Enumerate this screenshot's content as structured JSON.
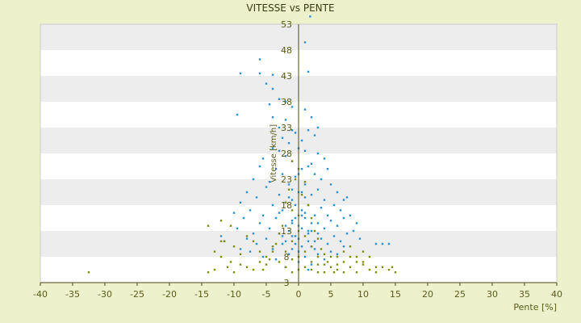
{
  "chart_data": {
    "type": "scatter",
    "title": "VITESSE vs PENTE",
    "xlabel": "Pente [%]",
    "ylabel": "Vitesse [km/h]",
    "xlim": [
      -40,
      40
    ],
    "ylim": [
      3,
      53
    ],
    "x_ticks": [
      "-40",
      "-35",
      "-30",
      "-25",
      "-20",
      "-15",
      "-10",
      "-5",
      "0",
      "5",
      "10",
      "15",
      "20",
      "25",
      "30",
      "35",
      "40"
    ],
    "y_ticks": [
      "3",
      "8",
      "13",
      "18",
      "23",
      "28",
      "33",
      "38",
      "43",
      "48",
      "53"
    ],
    "grid": "horizontal alternating bands",
    "legend": "none",
    "colors": {
      "background": "#eef2cc",
      "band_light": "#ffffff",
      "band_dark": "#ededed",
      "series_blue": "#2b8fd6",
      "series_olive": "#7f8b10",
      "axis": "#4a4a10"
    },
    "series": [
      {
        "color": "#2b8fd6",
        "points": [
          [
            1.8,
            54.5
          ],
          [
            1,
            49.5
          ],
          [
            -6,
            46.2
          ],
          [
            -9,
            43.5
          ],
          [
            -6,
            43.5
          ],
          [
            -4,
            43.2
          ],
          [
            1.5,
            43.8
          ],
          [
            -5,
            41.5
          ],
          [
            -4,
            40.5
          ],
          [
            -3,
            38.5
          ],
          [
            -2,
            38
          ],
          [
            -4.5,
            37.5
          ],
          [
            -1,
            37
          ],
          [
            1,
            36.5
          ],
          [
            -9.5,
            35.5
          ],
          [
            -4,
            35
          ],
          [
            -2,
            34.5
          ],
          [
            2,
            35
          ],
          [
            -3,
            33
          ],
          [
            -1,
            32.5
          ],
          [
            -0.5,
            32
          ],
          [
            1.5,
            32.5
          ],
          [
            3,
            33
          ],
          [
            -2.5,
            31
          ],
          [
            0.5,
            30.5
          ],
          [
            2.5,
            31.5
          ],
          [
            -1.5,
            30
          ],
          [
            -4,
            29
          ],
          [
            -3,
            28.5
          ],
          [
            0,
            29
          ],
          [
            1,
            28.5
          ],
          [
            -2,
            27.5
          ],
          [
            3,
            28
          ],
          [
            4,
            27
          ],
          [
            -5.5,
            27
          ],
          [
            -1,
            26.5
          ],
          [
            2,
            26
          ],
          [
            -6,
            25.5
          ],
          [
            -3.5,
            25
          ],
          [
            0.5,
            25
          ],
          [
            1.5,
            25.5
          ],
          [
            4.5,
            25
          ],
          [
            -2.5,
            24
          ],
          [
            -0.5,
            23.5
          ],
          [
            2.5,
            24
          ],
          [
            3.5,
            23
          ],
          [
            -7,
            23
          ],
          [
            -4.5,
            22.5
          ],
          [
            -1.5,
            22
          ],
          [
            1,
            22
          ],
          [
            5,
            22
          ],
          [
            -5,
            21.5
          ],
          [
            3,
            21
          ],
          [
            -8,
            20.5
          ],
          [
            -3,
            20
          ],
          [
            0,
            20.5
          ],
          [
            2,
            20
          ],
          [
            6,
            20.5
          ],
          [
            -6.5,
            19.5
          ],
          [
            -1,
            19
          ],
          [
            4,
            19
          ],
          [
            7,
            19
          ],
          [
            7.5,
            19.5
          ],
          [
            -9,
            18.5
          ],
          [
            -4,
            18
          ],
          [
            1.5,
            18
          ],
          [
            3.5,
            17.5
          ],
          [
            5.5,
            18
          ],
          [
            -7.5,
            17
          ],
          [
            -2.5,
            17
          ],
          [
            0.5,
            17
          ],
          [
            6.5,
            17
          ],
          [
            -10,
            16.5
          ],
          [
            -5.5,
            16
          ],
          [
            2.5,
            16
          ],
          [
            4.5,
            16
          ],
          [
            8,
            16
          ],
          [
            -8.5,
            15.5
          ],
          [
            -3.5,
            15.5
          ],
          [
            -1,
            15
          ],
          [
            1,
            15.5
          ],
          [
            5,
            15
          ],
          [
            7,
            15.5
          ],
          [
            -6,
            14.5
          ],
          [
            -2,
            14
          ],
          [
            0,
            14
          ],
          [
            3,
            14.5
          ],
          [
            6,
            14
          ],
          [
            9,
            14.5
          ],
          [
            -9.5,
            13.5
          ],
          [
            -4.5,
            13.5
          ],
          [
            2,
            13
          ],
          [
            4,
            13.5
          ],
          [
            8.5,
            13
          ],
          [
            -7,
            12.5
          ],
          [
            -3,
            12.5
          ],
          [
            -0.5,
            12
          ],
          [
            1.5,
            12.5
          ],
          [
            5.5,
            12
          ],
          [
            7.5,
            12.5
          ],
          [
            -8,
            11.5
          ],
          [
            -5,
            11.5
          ],
          [
            3.5,
            11.5
          ],
          [
            6.5,
            11
          ],
          [
            9.5,
            11.5
          ],
          [
            -6.5,
            10.5
          ],
          [
            -2.5,
            10.5
          ],
          [
            0.5,
            10
          ],
          [
            4.5,
            10.5
          ],
          [
            7,
            10
          ],
          [
            -9,
            9.5
          ],
          [
            -4,
            9.5
          ],
          [
            2.5,
            9.5
          ],
          [
            5,
            9
          ],
          [
            -7.5,
            9
          ],
          [
            -1.5,
            8.5
          ],
          [
            3,
            8.5
          ],
          [
            6,
            8.5
          ],
          [
            -5.5,
            8
          ],
          [
            1,
            8
          ],
          [
            4,
            7.5
          ],
          [
            -3.5,
            7.5
          ],
          [
            0,
            7
          ],
          [
            2,
            6.5
          ],
          [
            -2,
            6
          ],
          [
            1.5,
            5.5
          ],
          [
            12,
            10.5
          ],
          [
            13,
            10.5
          ],
          [
            14,
            10.5
          ],
          [
            -12,
            12
          ],
          [
            -11.5,
            11
          ],
          [
            -1,
            21
          ],
          [
            0,
            24
          ],
          [
            -1.5,
            19.5
          ],
          [
            1,
            16.5
          ],
          [
            -0.5,
            15.5
          ],
          [
            0.5,
            13.5
          ],
          [
            -1,
            12
          ],
          [
            1.5,
            11
          ],
          [
            -0.5,
            10.5
          ],
          [
            0,
            9
          ],
          [
            0.5,
            20.5
          ],
          [
            -2,
            18.5
          ],
          [
            2,
            14.5
          ],
          [
            -3,
            16.5
          ],
          [
            3,
            12.5
          ],
          [
            -2.5,
            12
          ],
          [
            2.5,
            11
          ],
          [
            -1.5,
            13
          ],
          [
            1,
            19.5
          ],
          [
            -0.5,
            18
          ],
          [
            0.5,
            16
          ],
          [
            -1,
            14.5
          ],
          [
            1.5,
            13
          ],
          [
            -2,
            11
          ],
          [
            2,
            10
          ],
          [
            -1,
            9.5
          ],
          [
            0,
            11.5
          ]
        ]
      },
      {
        "color": "#7f8b10",
        "points": [
          [
            -32.5,
            5
          ],
          [
            -14,
            5
          ],
          [
            -13,
            5.5
          ],
          [
            -14,
            14
          ],
          [
            -12,
            15
          ],
          [
            -10.5,
            14
          ],
          [
            -12,
            11
          ],
          [
            -11.5,
            11
          ],
          [
            -10,
            10
          ],
          [
            -10.5,
            7
          ],
          [
            -9,
            8.5
          ],
          [
            -8,
            12
          ],
          [
            -7,
            11
          ],
          [
            -6,
            9
          ],
          [
            -5,
            8
          ],
          [
            -4,
            10
          ],
          [
            -3,
            7
          ],
          [
            -2,
            6
          ],
          [
            -1,
            5
          ],
          [
            0,
            5.5
          ],
          [
            1,
            6
          ],
          [
            2,
            7
          ],
          [
            3,
            5
          ],
          [
            4,
            6.5
          ],
          [
            5,
            8
          ],
          [
            6,
            5.5
          ],
          [
            7,
            7
          ],
          [
            8,
            6
          ],
          [
            9,
            5
          ],
          [
            10,
            6.5
          ],
          [
            11,
            5.5
          ],
          [
            12,
            5
          ],
          [
            13,
            6
          ],
          [
            14,
            5.5
          ],
          [
            15,
            5
          ],
          [
            14.5,
            6
          ],
          [
            -1,
            26.5
          ],
          [
            0,
            25
          ],
          [
            -0.5,
            23
          ],
          [
            1,
            22.5
          ],
          [
            -1.5,
            21
          ],
          [
            0.5,
            20
          ],
          [
            -2,
            18.5
          ],
          [
            1.5,
            18
          ],
          [
            -1,
            17
          ],
          [
            0,
            16
          ],
          [
            2,
            15.5
          ],
          [
            -2.5,
            14
          ],
          [
            2.5,
            13
          ],
          [
            -3,
            12.5
          ],
          [
            3,
            11.5
          ],
          [
            -3.5,
            10.5
          ],
          [
            3.5,
            9.5
          ],
          [
            -4,
            9
          ],
          [
            4,
            8.5
          ],
          [
            -4.5,
            7.5
          ],
          [
            4.5,
            7
          ],
          [
            -5,
            6.5
          ],
          [
            5,
            6
          ],
          [
            -5.5,
            5.5
          ],
          [
            5.5,
            5
          ],
          [
            6,
            8
          ],
          [
            7,
            9
          ],
          [
            8,
            10
          ],
          [
            9,
            8
          ],
          [
            10,
            7
          ],
          [
            11,
            8
          ],
          [
            12,
            6
          ],
          [
            -8,
            6
          ],
          [
            -7,
            5.5
          ],
          [
            -6,
            7
          ],
          [
            -9,
            6.5
          ],
          [
            -11,
            6
          ],
          [
            -10,
            5
          ],
          [
            -12,
            8
          ],
          [
            -13,
            9
          ],
          [
            1,
            9
          ],
          [
            2,
            10
          ],
          [
            3,
            8
          ],
          [
            0,
            8
          ],
          [
            -1,
            7.5
          ],
          [
            -2,
            9
          ],
          [
            1,
            12
          ],
          [
            0,
            13
          ],
          [
            -1,
            11
          ],
          [
            2,
            5.5
          ],
          [
            3,
            6.5
          ],
          [
            4,
            5
          ],
          [
            6,
            6.5
          ],
          [
            7,
            5
          ],
          [
            8,
            8
          ],
          [
            9,
            7
          ],
          [
            10,
            9
          ]
        ]
      }
    ]
  }
}
